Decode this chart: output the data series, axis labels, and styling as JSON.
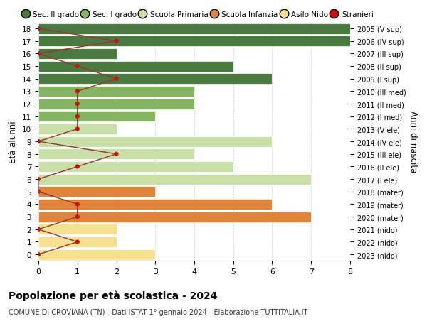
{
  "ages": [
    18,
    17,
    16,
    15,
    14,
    13,
    12,
    11,
    10,
    9,
    8,
    7,
    6,
    5,
    4,
    3,
    2,
    1,
    0
  ],
  "right_labels": [
    "2005 (V sup)",
    "2006 (IV sup)",
    "2007 (III sup)",
    "2008 (II sup)",
    "2009 (I sup)",
    "2010 (III med)",
    "2011 (II med)",
    "2012 (I med)",
    "2013 (V ele)",
    "2014 (IV ele)",
    "2015 (III ele)",
    "2016 (II ele)",
    "2017 (I ele)",
    "2018 (mater)",
    "2019 (mater)",
    "2020 (mater)",
    "2021 (nido)",
    "2022 (nido)",
    "2023 (nido)"
  ],
  "bar_values": [
    8,
    8,
    2,
    5,
    6,
    4,
    4,
    3,
    2,
    6,
    4,
    5,
    7,
    3,
    6,
    7,
    2,
    2,
    3
  ],
  "stranieri": [
    0,
    2,
    0,
    1,
    2,
    1,
    1,
    1,
    1,
    0,
    2,
    1,
    0,
    0,
    1,
    1,
    0,
    1,
    0
  ],
  "bar_colors": [
    "#4a7a40",
    "#4a7a40",
    "#4a7a40",
    "#4a7a40",
    "#4a7a40",
    "#85b562",
    "#85b562",
    "#85b562",
    "#c8e0a8",
    "#c8e0a8",
    "#c8e0a8",
    "#c8e0a8",
    "#c8e0a8",
    "#e0843a",
    "#e0843a",
    "#e0843a",
    "#f5e090",
    "#f5e090",
    "#f5e090"
  ],
  "legend_colors": [
    "#4a7a40",
    "#85b562",
    "#c8e0a8",
    "#e0843a",
    "#f5e090",
    "#cc1111"
  ],
  "legend_labels": [
    "Sec. II grado",
    "Sec. I grado",
    "Scuola Primaria",
    "Scuola Infanzia",
    "Asilo Nido",
    "Stranieri"
  ],
  "ylabel_left": "Età alunni",
  "ylabel_right": "Anni di nascita",
  "title": "Popolazione per età scolastica - 2024",
  "subtitle": "COMUNE DI CROVIANA (TN) - Dati ISTAT 1° gennaio 2024 - Elaborazione TUTTITALIA.IT",
  "xlim": [
    0,
    8
  ],
  "background_color": "#ffffff",
  "stranieri_color": "#cc1111",
  "stranieri_line_color": "#993333",
  "grid_color": "#cccccc"
}
